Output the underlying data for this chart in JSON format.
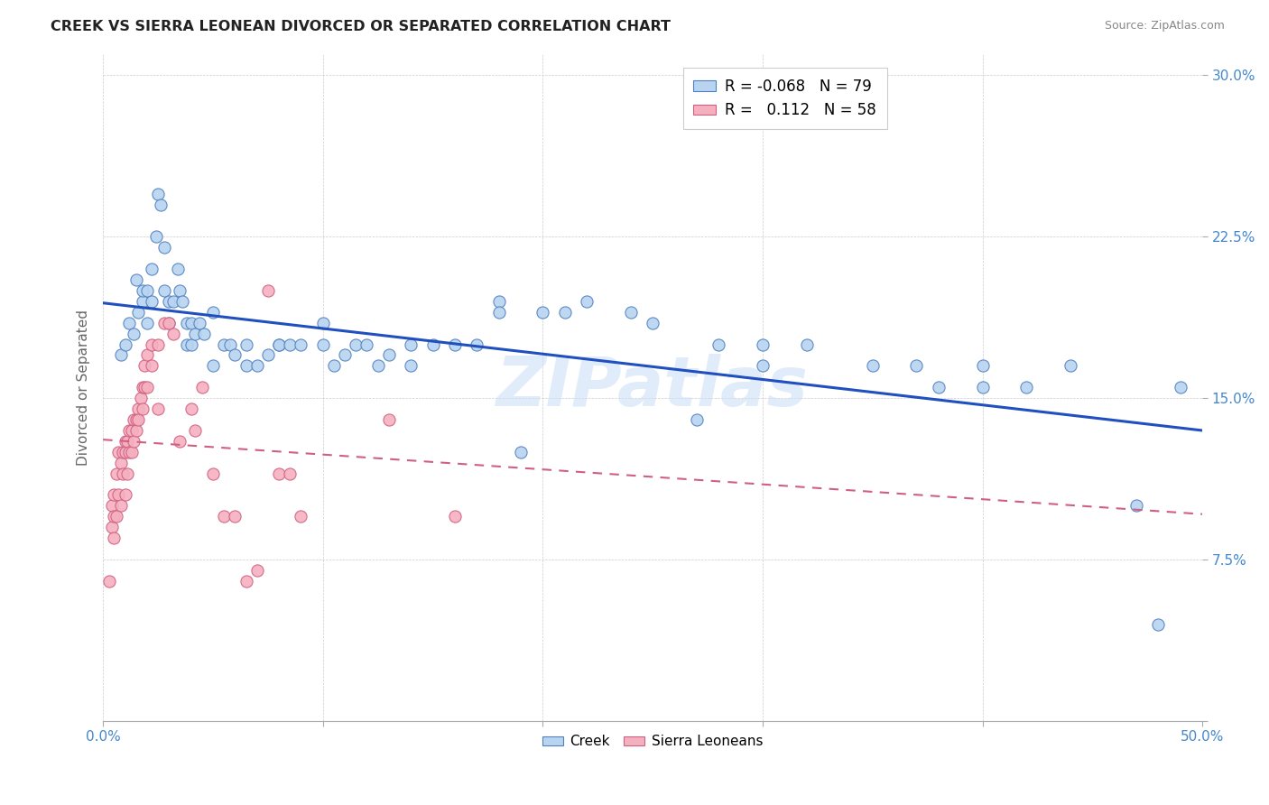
{
  "title": "CREEK VS SIERRA LEONEAN DIVORCED OR SEPARATED CORRELATION CHART",
  "source": "Source: ZipAtlas.com",
  "ylabel": "Divorced or Separated",
  "xlim": [
    0.0,
    0.5
  ],
  "ylim": [
    0.0,
    0.31
  ],
  "xticks": [
    0.0,
    0.1,
    0.2,
    0.3,
    0.4,
    0.5
  ],
  "xticklabels": [
    "0.0%",
    "",
    "",
    "",
    "",
    "50.0%"
  ],
  "yticks": [
    0.0,
    0.075,
    0.15,
    0.225,
    0.3
  ],
  "yticklabels": [
    "",
    "7.5%",
    "15.0%",
    "22.5%",
    "30.0%"
  ],
  "watermark": "ZIPatlas",
  "legend_creek_R": "-0.068",
  "legend_creek_N": "79",
  "legend_sl_R": "0.112",
  "legend_sl_N": "58",
  "creek_color": "#b8d4f0",
  "sl_color": "#f5b0c0",
  "creek_edge_color": "#5080c0",
  "sl_edge_color": "#d06080",
  "creek_line_color": "#2050c0",
  "sl_line_color": "#d06080",
  "background_color": "#ffffff",
  "creek_points_x": [
    0.008,
    0.01,
    0.012,
    0.014,
    0.015,
    0.016,
    0.018,
    0.018,
    0.02,
    0.02,
    0.022,
    0.022,
    0.024,
    0.025,
    0.026,
    0.028,
    0.028,
    0.03,
    0.03,
    0.032,
    0.034,
    0.035,
    0.036,
    0.038,
    0.038,
    0.04,
    0.04,
    0.042,
    0.044,
    0.046,
    0.05,
    0.05,
    0.055,
    0.058,
    0.06,
    0.065,
    0.065,
    0.07,
    0.075,
    0.08,
    0.08,
    0.085,
    0.09,
    0.1,
    0.1,
    0.105,
    0.11,
    0.115,
    0.12,
    0.125,
    0.13,
    0.14,
    0.14,
    0.15,
    0.16,
    0.17,
    0.18,
    0.18,
    0.19,
    0.2,
    0.21,
    0.22,
    0.24,
    0.25,
    0.27,
    0.28,
    0.3,
    0.3,
    0.32,
    0.35,
    0.37,
    0.38,
    0.4,
    0.4,
    0.42,
    0.44,
    0.47,
    0.48,
    0.49
  ],
  "creek_points_y": [
    0.17,
    0.175,
    0.185,
    0.18,
    0.205,
    0.19,
    0.195,
    0.2,
    0.185,
    0.2,
    0.195,
    0.21,
    0.225,
    0.245,
    0.24,
    0.2,
    0.22,
    0.185,
    0.195,
    0.195,
    0.21,
    0.2,
    0.195,
    0.175,
    0.185,
    0.175,
    0.185,
    0.18,
    0.185,
    0.18,
    0.165,
    0.19,
    0.175,
    0.175,
    0.17,
    0.165,
    0.175,
    0.165,
    0.17,
    0.175,
    0.175,
    0.175,
    0.175,
    0.185,
    0.175,
    0.165,
    0.17,
    0.175,
    0.175,
    0.165,
    0.17,
    0.165,
    0.175,
    0.175,
    0.175,
    0.175,
    0.195,
    0.19,
    0.125,
    0.19,
    0.19,
    0.195,
    0.19,
    0.185,
    0.14,
    0.175,
    0.165,
    0.175,
    0.175,
    0.165,
    0.165,
    0.155,
    0.165,
    0.155,
    0.155,
    0.165,
    0.1,
    0.045,
    0.155
  ],
  "sl_points_x": [
    0.003,
    0.004,
    0.004,
    0.005,
    0.005,
    0.005,
    0.006,
    0.006,
    0.007,
    0.007,
    0.008,
    0.008,
    0.009,
    0.009,
    0.01,
    0.01,
    0.01,
    0.011,
    0.011,
    0.012,
    0.012,
    0.013,
    0.013,
    0.014,
    0.014,
    0.015,
    0.015,
    0.016,
    0.016,
    0.017,
    0.018,
    0.018,
    0.019,
    0.019,
    0.02,
    0.02,
    0.022,
    0.022,
    0.025,
    0.025,
    0.028,
    0.03,
    0.032,
    0.035,
    0.04,
    0.042,
    0.045,
    0.05,
    0.055,
    0.06,
    0.065,
    0.07,
    0.075,
    0.08,
    0.085,
    0.09,
    0.13,
    0.16
  ],
  "sl_points_y": [
    0.065,
    0.1,
    0.09,
    0.105,
    0.095,
    0.085,
    0.115,
    0.095,
    0.125,
    0.105,
    0.12,
    0.1,
    0.125,
    0.115,
    0.13,
    0.125,
    0.105,
    0.13,
    0.115,
    0.135,
    0.125,
    0.135,
    0.125,
    0.14,
    0.13,
    0.14,
    0.135,
    0.145,
    0.14,
    0.15,
    0.155,
    0.145,
    0.165,
    0.155,
    0.17,
    0.155,
    0.175,
    0.165,
    0.175,
    0.145,
    0.185,
    0.185,
    0.18,
    0.13,
    0.145,
    0.135,
    0.155,
    0.115,
    0.095,
    0.095,
    0.065,
    0.07,
    0.2,
    0.115,
    0.115,
    0.095,
    0.14,
    0.095
  ]
}
